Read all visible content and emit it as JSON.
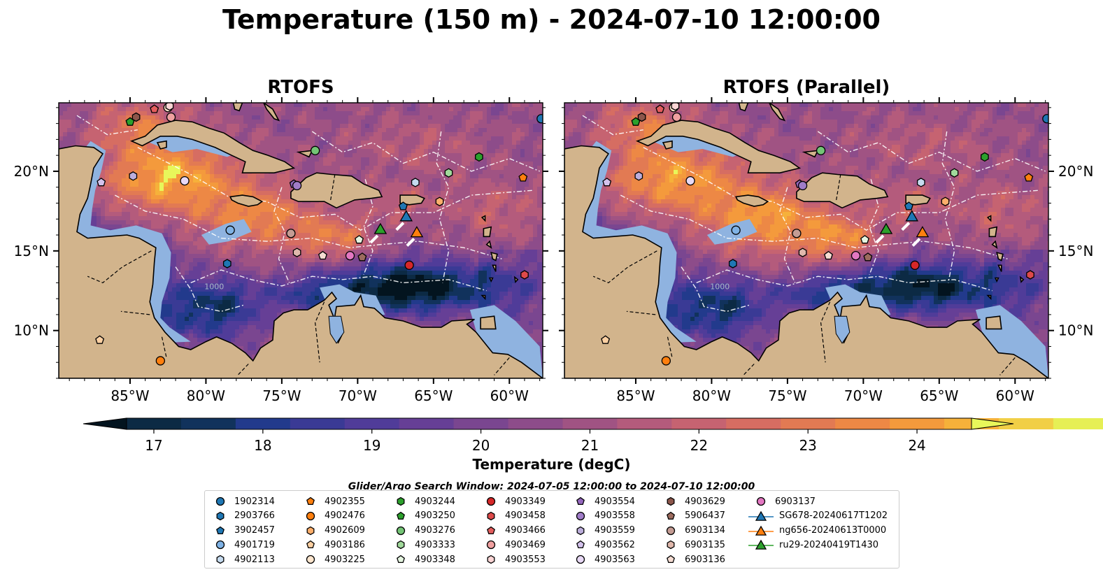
{
  "title": "Temperature (150 m) - 2024-07-10 12:00:00",
  "panels": [
    {
      "title": "RTOFS",
      "variant": "main"
    },
    {
      "title": "RTOFS (Parallel)",
      "variant": "parallel"
    }
  ],
  "map": {
    "lon_range": [
      -89.7,
      -57.8
    ],
    "lat_range": [
      7.0,
      24.3
    ],
    "lon_ticks": [
      -85,
      -80,
      -75,
      -70,
      -65,
      -60
    ],
    "lon_tick_labels": [
      "85°W",
      "80°W",
      "75°W",
      "70°W",
      "65°W",
      "60°W"
    ],
    "lat_ticks": [
      10,
      15,
      20
    ],
    "lat_tick_labels": [
      "10°N",
      "15°N",
      "20°N"
    ],
    "land_color": "#d2b48c",
    "shelf_color": "#8fb3e0",
    "bathymetry_label": "1000"
  },
  "colorbar": {
    "label": "Temperature (degC)",
    "min": 16.75,
    "max": 24.5,
    "step": 0.5,
    "ticks": [
      17,
      18,
      19,
      20,
      21,
      22,
      23,
      24
    ],
    "tick_labels": [
      "17",
      "18",
      "19",
      "20",
      "21",
      "22",
      "23",
      "24"
    ],
    "extend": "both",
    "colors": [
      "#0c2a44",
      "#11325c",
      "#223a8c",
      "#3a3a95",
      "#503c99",
      "#663f96",
      "#7a4690",
      "#8d4c8a",
      "#a05383",
      "#b45b7c",
      "#c66371",
      "#d66d62",
      "#e27a53",
      "#ed8845",
      "#f49a3c",
      "#f6b13a",
      "#f1cf46",
      "#e6ef55"
    ],
    "under_color": "#03141f",
    "over_color": "#e8f75a"
  },
  "search_window": "Glider/Argo Search Window: 2024-07-05 12:00:00 to 2024-07-10 12:00:00",
  "observations": [
    {
      "id": "1902314",
      "marker": "circle",
      "color": "#1f77b4",
      "lon": -57.9,
      "lat": 23.3
    },
    {
      "id": "2903766",
      "marker": "hexagon",
      "color": "#1f77b4",
      "lon": -78.6,
      "lat": 14.2
    },
    {
      "id": "3902457",
      "marker": "pentagon",
      "color": "#1f77b4",
      "lon": -67.0,
      "lat": 17.8
    },
    {
      "id": "4901719",
      "marker": "circle",
      "color": "#7fb2e5",
      "lon": -78.4,
      "lat": 16.3
    },
    {
      "id": "4902113",
      "marker": "hexagon",
      "color": "#c6dbef",
      "lon": -66.2,
      "lat": 19.3
    },
    {
      "id": "4902355",
      "marker": "pentagon",
      "color": "#ff7f0e",
      "lon": -59.1,
      "lat": 19.6
    },
    {
      "id": "4902476",
      "marker": "circle",
      "color": "#ff7f0e",
      "lon": -83.0,
      "lat": 8.1
    },
    {
      "id": "4902609",
      "marker": "hexagon",
      "color": "#fdae6b",
      "lon": -64.6,
      "lat": 18.1
    },
    {
      "id": "4903186",
      "marker": "pentagon",
      "color": "#fdd0a2",
      "lon": -87.0,
      "lat": 9.4
    },
    {
      "id": "4903225",
      "marker": "circle",
      "color": "#fee6ce",
      "lon": -82.5,
      "lat": 24.0
    },
    {
      "id": "4903244",
      "marker": "hexagon",
      "color": "#2ca02c",
      "lon": -62.0,
      "lat": 20.9
    },
    {
      "id": "4903250",
      "marker": "pentagon",
      "color": "#2ca02c",
      "lon": -85.0,
      "lat": 23.1
    },
    {
      "id": "4903276",
      "marker": "circle",
      "color": "#74c476",
      "lon": -72.8,
      "lat": 21.3
    },
    {
      "id": "4903333",
      "marker": "hexagon",
      "color": "#a1d99b",
      "lon": -64.0,
      "lat": 19.9
    },
    {
      "id": "4903348",
      "marker": "pentagon",
      "color": "#e5f5e0",
      "lon": -69.9,
      "lat": 15.7
    },
    {
      "id": "4903349",
      "marker": "circle",
      "color": "#d62728",
      "lon": -66.6,
      "lat": 14.1
    },
    {
      "id": "4903458",
      "marker": "hexagon",
      "color": "#de4a4a",
      "lon": -59.0,
      "lat": 13.5
    },
    {
      "id": "4903466",
      "marker": "pentagon",
      "color": "#e35d5d",
      "lon": -83.4,
      "lat": 23.9
    },
    {
      "id": "4903469",
      "marker": "circle",
      "color": "#f0a0a0",
      "lon": -82.3,
      "lat": 23.4
    },
    {
      "id": "4903553",
      "marker": "hexagon",
      "color": "#fcd5d5",
      "lon": -82.4,
      "lat": 24.1
    },
    {
      "id": "4903554",
      "marker": "pentagon",
      "color": "#9467bd",
      "lon": -74.2,
      "lat": 19.2
    },
    {
      "id": "4903558",
      "marker": "circle",
      "color": "#a07cc8",
      "lon": -74.0,
      "lat": 19.1
    },
    {
      "id": "4903559",
      "marker": "hexagon",
      "color": "#bcaedb",
      "lon": -84.8,
      "lat": 19.7
    },
    {
      "id": "4903562",
      "marker": "pentagon",
      "color": "#d4c2ec",
      "lon": -86.9,
      "lat": 19.3
    },
    {
      "id": "4903563",
      "marker": "circle",
      "color": "#e8d9f5",
      "lon": -81.4,
      "lat": 19.4
    },
    {
      "id": "4903629",
      "marker": "hexagon",
      "color": "#8c564b",
      "lon": -84.6,
      "lat": 23.4
    },
    {
      "id": "5906437",
      "marker": "pentagon",
      "color": "#9c6b5e",
      "lon": -69.7,
      "lat": 14.6
    },
    {
      "id": "6903134",
      "marker": "circle",
      "color": "#c49c94",
      "lon": -74.4,
      "lat": 16.1
    },
    {
      "id": "6903135",
      "marker": "hexagon",
      "color": "#e0b8ac",
      "lon": -74.0,
      "lat": 14.9
    },
    {
      "id": "6903136",
      "marker": "pentagon",
      "color": "#f5dcd2",
      "lon": -72.3,
      "lat": 14.7
    },
    {
      "id": "6903137",
      "marker": "circle",
      "color": "#e377c2",
      "lon": -70.5,
      "lat": 14.7
    },
    {
      "id": "SG678-20240617T1202",
      "marker": "triangle",
      "color": "#1f77b4",
      "lon": -66.8,
      "lat": 17.2,
      "track": true
    },
    {
      "id": "ng656-20240613T0000",
      "marker": "triangle",
      "color": "#ff7f0e",
      "lon": -66.1,
      "lat": 16.2,
      "track": true
    },
    {
      "id": "ru29-20240419T1430",
      "marker": "triangle",
      "color": "#2ca02c",
      "lon": -68.5,
      "lat": 16.4,
      "track": true
    }
  ]
}
